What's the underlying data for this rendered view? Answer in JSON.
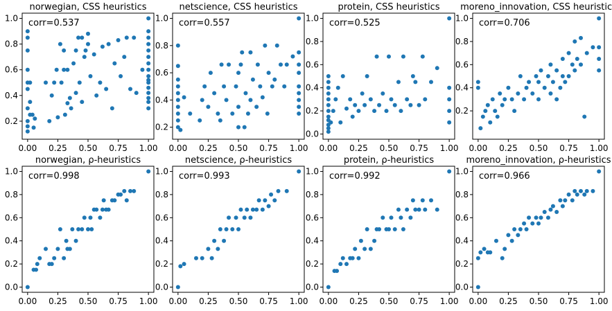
{
  "chart_data": [
    {
      "type": "scatter",
      "title": "norwegian, CSS heuristics",
      "annotation": "corr=0.537",
      "xlim": [
        0,
        1
      ],
      "ylim": [
        0.1,
        1.0
      ],
      "xticks": [
        "0.00",
        "0.25",
        "0.50",
        "0.75",
        "1.00"
      ],
      "yticks": [
        "0.2",
        "0.4",
        "0.6",
        "0.8",
        "1.0"
      ],
      "ytick_values": [
        0.2,
        0.4,
        0.6,
        0.8,
        1.0
      ],
      "grid": false,
      "x": [
        0,
        0,
        0,
        0,
        0,
        0,
        0,
        0,
        0,
        0,
        0.02,
        0.02,
        0.02,
        0.04,
        0.05,
        0.06,
        0.15,
        0.18,
        0.2,
        0.22,
        0.24,
        0.25,
        0.27,
        0.28,
        0.3,
        0.3,
        0.31,
        0.33,
        0.33,
        0.35,
        0.36,
        0.38,
        0.4,
        0.4,
        0.42,
        0.43,
        0.45,
        0.45,
        0.47,
        0.48,
        0.5,
        0.5,
        0.52,
        0.55,
        0.57,
        0.6,
        0.62,
        0.65,
        0.67,
        0.7,
        0.72,
        0.75,
        0.77,
        0.8,
        0.82,
        0.85,
        0.88,
        0.9,
        0.95,
        1,
        1,
        1,
        1,
        1,
        1,
        1,
        1,
        1,
        1,
        1,
        1,
        1,
        1,
        1,
        1
      ],
      "y": [
        0.12,
        0.16,
        0.2,
        0.3,
        0.45,
        0.5,
        0.6,
        0.75,
        0.85,
        0.9,
        0.25,
        0.35,
        0.5,
        0.25,
        0.15,
        0.22,
        0.5,
        0.2,
        0.4,
        0.5,
        0.6,
        0.23,
        0.8,
        0.5,
        0.6,
        0.75,
        0.25,
        0.34,
        0.6,
        0.38,
        0.3,
        0.65,
        0.42,
        0.75,
        0.85,
        0.5,
        0.85,
        0.35,
        0.7,
        0.75,
        0.8,
        0.88,
        0.55,
        0.72,
        0.4,
        0.5,
        0.78,
        0.45,
        0.8,
        0.3,
        0.65,
        0.83,
        0.55,
        0.7,
        0.85,
        0.45,
        0.85,
        0.42,
        0.6,
        0.3,
        0.35,
        0.38,
        0.42,
        0.46,
        0.5,
        0.52,
        0.55,
        0.6,
        0.65,
        0.7,
        0.75,
        0.8,
        0.85,
        0.9,
        1.0
      ]
    },
    {
      "type": "scatter",
      "title": "netscience, CSS heuristics",
      "annotation": "corr=0.557",
      "xlim": [
        0,
        1
      ],
      "ylim": [
        0.15,
        1.0
      ],
      "xticks": [
        "0.00",
        "0.25",
        "0.50",
        "0.75",
        "1.00"
      ],
      "yticks": [
        "0.2",
        "0.4",
        "0.6",
        "0.8",
        "1.0"
      ],
      "ytick_values": [
        0.2,
        0.4,
        0.6,
        0.8,
        1.0
      ],
      "grid": false,
      "x": [
        0,
        0,
        0,
        0,
        0,
        0,
        0,
        0,
        0,
        0,
        0.02,
        0.05,
        0.1,
        0.18,
        0.2,
        0.22,
        0.25,
        0.27,
        0.3,
        0.33,
        0.35,
        0.36,
        0.38,
        0.4,
        0.42,
        0.45,
        0.48,
        0.5,
        0.5,
        0.5,
        0.52,
        0.53,
        0.55,
        0.56,
        0.58,
        0.6,
        0.6,
        0.62,
        0.65,
        0.66,
        0.68,
        0.7,
        0.72,
        0.74,
        0.75,
        0.78,
        0.8,
        0.82,
        0.85,
        0.88,
        0.9,
        0.95,
        1,
        1,
        1,
        1,
        1,
        1,
        1,
        1,
        1
      ],
      "y": [
        0.2,
        0.25,
        0.3,
        0.35,
        0.4,
        0.45,
        0.5,
        0.55,
        0.65,
        0.8,
        0.18,
        0.42,
        0.3,
        0.25,
        0.4,
        0.5,
        0.35,
        0.6,
        0.45,
        0.3,
        0.25,
        0.66,
        0.5,
        0.4,
        0.66,
        0.3,
        0.5,
        0.2,
        0.35,
        0.6,
        0.66,
        0.75,
        0.2,
        0.45,
        0.3,
        0.4,
        0.75,
        0.55,
        0.35,
        0.66,
        0.5,
        0.42,
        0.8,
        0.3,
        0.6,
        0.5,
        0.55,
        0.8,
        0.66,
        0.5,
        0.66,
        0.72,
        0.3,
        0.35,
        0.4,
        0.45,
        0.5,
        0.6,
        0.66,
        0.75,
        1.0
      ]
    },
    {
      "type": "scatter",
      "title": "protein, CSS heuristics",
      "annotation": "corr=0.525",
      "xlim": [
        0,
        1
      ],
      "ylim": [
        0,
        1.0
      ],
      "xticks": [
        "0.00",
        "0.25",
        "0.50",
        "0.75",
        "1.00"
      ],
      "yticks": [
        "0.0",
        "0.2",
        "0.4",
        "0.6",
        "0.8",
        "1.0"
      ],
      "ytick_values": [
        0,
        0.2,
        0.4,
        0.6,
        0.8,
        1.0
      ],
      "grid": false,
      "x": [
        0,
        0,
        0,
        0,
        0,
        0,
        0,
        0,
        0,
        0,
        0,
        0,
        0.02,
        0.04,
        0.06,
        0.08,
        0.1,
        0.12,
        0.15,
        0.18,
        0.2,
        0.22,
        0.25,
        0.28,
        0.3,
        0.32,
        0.35,
        0.38,
        0.4,
        0.42,
        0.45,
        0.48,
        0.5,
        0.52,
        0.55,
        0.58,
        0.6,
        0.62,
        0.65,
        0.68,
        0.7,
        0.72,
        0.75,
        0.78,
        0.8,
        0.85,
        0.9,
        1,
        1,
        1,
        1,
        1
      ],
      "y": [
        0.02,
        0.05,
        0.08,
        0.12,
        0.15,
        0.2,
        0.25,
        0.3,
        0.35,
        0.4,
        0.45,
        0.5,
        0.1,
        0.2,
        0.3,
        0.4,
        0.1,
        0.5,
        0.22,
        0.3,
        0.15,
        0.25,
        0.2,
        0.35,
        0.25,
        0.5,
        0.3,
        0.2,
        0.67,
        0.25,
        0.35,
        0.2,
        0.67,
        0.3,
        0.25,
        0.45,
        0.2,
        0.67,
        0.3,
        0.25,
        0.5,
        0.45,
        0.25,
        0.67,
        0.3,
        0.45,
        0.57,
        0.1,
        0.2,
        0.3,
        0.4,
        1.0
      ]
    },
    {
      "type": "scatter",
      "title": "moreno_innovation, CSS heuristics",
      "annotation": "corr=0.706",
      "xlim": [
        0,
        1
      ],
      "ylim": [
        0,
        1.0
      ],
      "xticks": [
        "0.00",
        "0.25",
        "0.50",
        "0.75",
        "1.00"
      ],
      "yticks": [
        "0.2",
        "0.4",
        "0.6",
        "0.8",
        "1.0"
      ],
      "ytick_values": [
        0.2,
        0.4,
        0.6,
        0.8,
        1.0
      ],
      "grid": false,
      "x": [
        0,
        0,
        0.02,
        0.04,
        0.06,
        0.08,
        0.1,
        0.12,
        0.14,
        0.16,
        0.18,
        0.2,
        0.22,
        0.25,
        0.28,
        0.3,
        0.33,
        0.35,
        0.38,
        0.4,
        0.42,
        0.45,
        0.48,
        0.5,
        0.5,
        0.52,
        0.55,
        0.58,
        0.6,
        0.6,
        0.62,
        0.65,
        0.65,
        0.68,
        0.7,
        0.7,
        0.72,
        0.75,
        0.75,
        0.78,
        0.8,
        0.8,
        0.82,
        0.85,
        0.85,
        0.88,
        0.9,
        0.95,
        1,
        1,
        1,
        1
      ],
      "y": [
        0.4,
        0.45,
        0.05,
        0.15,
        0.2,
        0.25,
        0.1,
        0.3,
        0.2,
        0.15,
        0.35,
        0.25,
        0.3,
        0.4,
        0.3,
        0.2,
        0.35,
        0.5,
        0.3,
        0.4,
        0.45,
        0.35,
        0.5,
        0.3,
        0.45,
        0.55,
        0.4,
        0.5,
        0.35,
        0.6,
        0.45,
        0.3,
        0.55,
        0.4,
        0.5,
        0.65,
        0.45,
        0.5,
        0.7,
        0.6,
        0.55,
        0.8,
        0.65,
        0.6,
        0.83,
        0.15,
        0.7,
        0.75,
        0.55,
        0.65,
        0.75,
        1.0
      ]
    },
    {
      "type": "scatter",
      "title": "norwegian, ρ-heuristics",
      "annotation": "corr=0.998",
      "xlim": [
        0,
        1
      ],
      "ylim": [
        0,
        1.0
      ],
      "xticks": [
        "0.00",
        "0.25",
        "0.50",
        "0.75",
        "1.00"
      ],
      "yticks": [
        "0.0",
        "0.2",
        "0.4",
        "0.6",
        "0.8",
        "1.0"
      ],
      "ytick_values": [
        0,
        0.2,
        0.4,
        0.6,
        0.8,
        1.0
      ],
      "grid": false,
      "x": [
        0,
        0.05,
        0.07,
        0.08,
        0.1,
        0.15,
        0.18,
        0.2,
        0.22,
        0.25,
        0.27,
        0.3,
        0.32,
        0.33,
        0.35,
        0.37,
        0.4,
        0.42,
        0.45,
        0.47,
        0.5,
        0.52,
        0.53,
        0.55,
        0.57,
        0.6,
        0.62,
        0.63,
        0.65,
        0.67,
        0.7,
        0.72,
        0.75,
        0.77,
        0.8,
        0.82,
        0.85,
        0.88,
        1
      ],
      "y": [
        0,
        0.15,
        0.15,
        0.2,
        0.25,
        0.33,
        0.2,
        0.2,
        0.25,
        0.33,
        0.5,
        0.25,
        0.4,
        0.33,
        0.33,
        0.5,
        0.4,
        0.5,
        0.5,
        0.6,
        0.5,
        0.6,
        0.5,
        0.67,
        0.67,
        0.6,
        0.67,
        0.75,
        0.67,
        0.67,
        0.75,
        0.75,
        0.8,
        0.8,
        0.83,
        0.75,
        0.83,
        0.83,
        1.0
      ]
    },
    {
      "type": "scatter",
      "title": "netscience, ρ-heuristics",
      "annotation": "corr=0.993",
      "xlim": [
        0,
        1
      ],
      "ylim": [
        0,
        1.0
      ],
      "xticks": [
        "0.00",
        "0.25",
        "0.50",
        "0.75",
        "1.00"
      ],
      "yticks": [
        "0.0",
        "0.2",
        "0.4",
        "0.6",
        "0.8",
        "1.0"
      ],
      "ytick_values": [
        0,
        0.2,
        0.4,
        0.6,
        0.8,
        1.0
      ],
      "grid": false,
      "x": [
        0,
        0.02,
        0.05,
        0.15,
        0.2,
        0.25,
        0.28,
        0.3,
        0.33,
        0.35,
        0.38,
        0.4,
        0.42,
        0.45,
        0.48,
        0.5,
        0.52,
        0.55,
        0.57,
        0.6,
        0.62,
        0.65,
        0.67,
        0.7,
        0.72,
        0.75,
        0.77,
        0.8,
        0.83,
        0.9,
        1
      ],
      "y": [
        0,
        0.18,
        0.2,
        0.25,
        0.25,
        0.33,
        0.25,
        0.4,
        0.33,
        0.5,
        0.4,
        0.5,
        0.6,
        0.5,
        0.6,
        0.5,
        0.67,
        0.6,
        0.67,
        0.6,
        0.67,
        0.67,
        0.75,
        0.67,
        0.75,
        0.7,
        0.8,
        0.75,
        0.83,
        0.83,
        1.0
      ]
    },
    {
      "type": "scatter",
      "title": "protein, ρ-heuristics",
      "annotation": "corr=0.992",
      "xlim": [
        0,
        1
      ],
      "ylim": [
        0,
        1.0
      ],
      "xticks": [
        "0.00",
        "0.25",
        "0.50",
        "0.75",
        "1.00"
      ],
      "yticks": [
        "0.0",
        "0.2",
        "0.4",
        "0.6",
        "0.8",
        "1.0"
      ],
      "ytick_values": [
        0,
        0.2,
        0.4,
        0.6,
        0.8,
        1.0
      ],
      "grid": false,
      "x": [
        0,
        0.05,
        0.07,
        0.1,
        0.12,
        0.15,
        0.18,
        0.2,
        0.22,
        0.25,
        0.27,
        0.3,
        0.32,
        0.35,
        0.38,
        0.4,
        0.42,
        0.45,
        0.48,
        0.5,
        0.52,
        0.55,
        0.58,
        0.6,
        0.62,
        0.65,
        0.68,
        0.7,
        0.72,
        0.75,
        0.78,
        0.8,
        0.85,
        0.9,
        1
      ],
      "y": [
        0,
        0.14,
        0.14,
        0.2,
        0.25,
        0.2,
        0.25,
        0.25,
        0.33,
        0.25,
        0.4,
        0.33,
        0.5,
        0.33,
        0.4,
        0.5,
        0.5,
        0.6,
        0.5,
        0.5,
        0.6,
        0.5,
        0.67,
        0.6,
        0.5,
        0.67,
        0.6,
        0.75,
        0.67,
        0.67,
        0.75,
        0.67,
        0.75,
        0.67,
        1.0
      ]
    },
    {
      "type": "scatter",
      "title": "moreno_innovation, ρ-heuristics",
      "annotation": "corr=0.966",
      "xlim": [
        0,
        1
      ],
      "ylim": [
        0,
        1.0
      ],
      "xticks": [
        "0.00",
        "0.25",
        "0.50",
        "0.75",
        "1.00"
      ],
      "yticks": [
        "0.0",
        "0.2",
        "0.4",
        "0.6",
        "0.8",
        "1.0"
      ],
      "ytick_values": [
        0,
        0.2,
        0.4,
        0.6,
        0.8,
        1.0
      ],
      "grid": false,
      "x": [
        0,
        0,
        0.02,
        0.05,
        0.08,
        0.1,
        0.15,
        0.2,
        0.22,
        0.25,
        0.28,
        0.3,
        0.33,
        0.35,
        0.38,
        0.4,
        0.42,
        0.45,
        0.48,
        0.5,
        0.52,
        0.55,
        0.58,
        0.6,
        0.62,
        0.65,
        0.68,
        0.7,
        0.72,
        0.75,
        0.78,
        0.8,
        0.82,
        0.85,
        0.88,
        0.9,
        0.95,
        1
      ],
      "y": [
        0,
        0.25,
        0.3,
        0.33,
        0.3,
        0.3,
        0.4,
        0.25,
        0.33,
        0.45,
        0.4,
        0.5,
        0.45,
        0.5,
        0.55,
        0.5,
        0.6,
        0.55,
        0.6,
        0.55,
        0.6,
        0.65,
        0.6,
        0.67,
        0.7,
        0.65,
        0.75,
        0.7,
        0.75,
        0.8,
        0.75,
        0.83,
        0.8,
        0.83,
        0.8,
        0.83,
        0.83,
        1.0
      ]
    }
  ]
}
